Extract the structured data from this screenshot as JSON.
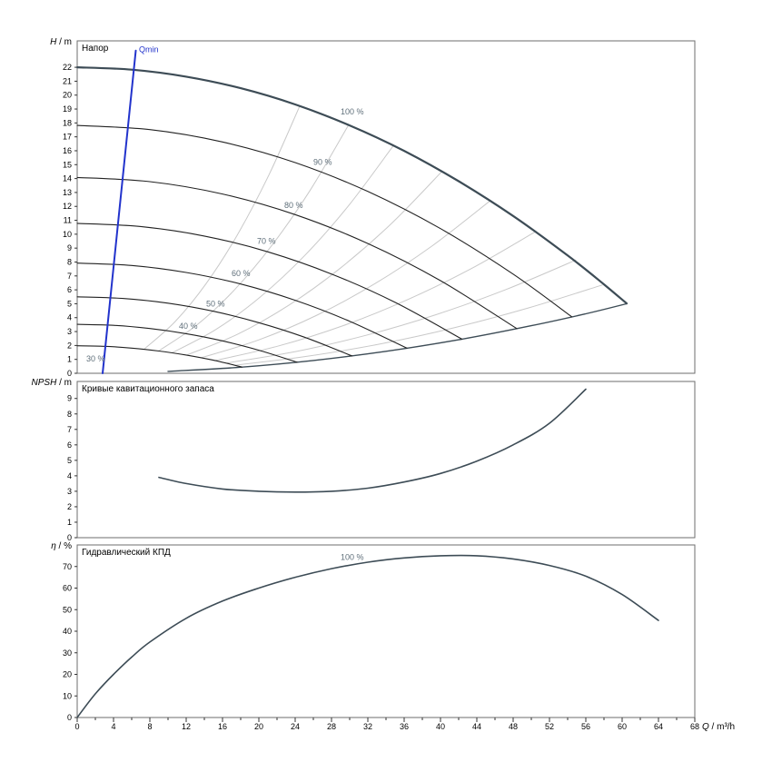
{
  "x_axis": {
    "label": "Q / m³/h",
    "min": 0,
    "max": 68,
    "minor_step": 2,
    "label_step": 4
  },
  "colors": {
    "envelope": "#3d4c56",
    "curve": "#222222",
    "iso": "#c9c9c9",
    "qmin": "#2233cc",
    "label": "#5f6f7a",
    "border": "#6e6e6e",
    "tick": "#333333",
    "text": "#000000"
  },
  "chart_data": [
    {
      "id": "head",
      "type": "line",
      "title": "Напор",
      "ylabel": "H / m",
      "ylim": [
        0,
        23.9
      ],
      "ytick_step": 1,
      "ytick_max": 22,
      "series": [
        {
          "name": "iso-eff-1",
          "role": "iso-efficiency-line",
          "color": "#c9c9c9",
          "width": 1,
          "points": [
            [
              7.4,
              1.75
            ],
            [
              10.8,
              3.73
            ],
            [
              14.2,
              6.45
            ],
            [
              17.6,
              9.91
            ],
            [
              21.1,
              14.25
            ],
            [
              24.5,
              19.21
            ]
          ]
        },
        {
          "name": "iso-eff-2",
          "role": "iso-efficiency-line",
          "color": "#c9c9c9",
          "width": 1,
          "points": [
            [
              9.0,
              1.62
            ],
            [
              13.2,
              3.49
            ],
            [
              17.3,
              5.99
            ],
            [
              21.5,
              9.25
            ],
            [
              25.7,
              13.21
            ],
            [
              29.9,
              17.88
            ]
          ]
        },
        {
          "name": "iso-eff-3",
          "role": "iso-efficiency-line",
          "color": "#c9c9c9",
          "width": 1,
          "points": [
            [
              10.5,
              1.49
            ],
            [
              15.3,
              3.16
            ],
            [
              20.2,
              5.51
            ],
            [
              25.1,
              8.5
            ],
            [
              29.9,
              12.07
            ],
            [
              34.8,
              16.35
            ]
          ]
        },
        {
          "name": "iso-eff-4",
          "role": "iso-efficiency-line",
          "color": "#c9c9c9",
          "width": 1,
          "points": [
            [
              12.1,
              1.32
            ],
            [
              17.7,
              2.82
            ],
            [
              23.3,
              4.89
            ],
            [
              28.9,
              7.52
            ],
            [
              34.6,
              10.77
            ],
            [
              40.2,
              14.54
            ]
          ]
        },
        {
          "name": "iso-eff-5",
          "role": "iso-efficiency-line",
          "color": "#c9c9c9",
          "width": 1,
          "points": [
            [
              13.6,
              1.11
            ],
            [
              20.0,
              2.4
            ],
            [
              26.4,
              4.18
            ],
            [
              32.8,
              6.45
            ],
            [
              39.1,
              9.17
            ],
            [
              45.5,
              12.42
            ]
          ]
        },
        {
          "name": "iso-eff-6",
          "role": "iso-efficiency-line",
          "color": "#c9c9c9",
          "width": 1,
          "points": [
            [
              15.1,
              0.91
            ],
            [
              22.2,
              1.97
            ],
            [
              29.3,
              3.43
            ],
            [
              36.4,
              5.3
            ],
            [
              43.4,
              7.53
            ],
            [
              50.5,
              10.2
            ]
          ]
        },
        {
          "name": "iso-eff-7",
          "role": "iso-efficiency-line",
          "color": "#c9c9c9",
          "width": 1,
          "points": [
            [
              16.5,
              0.74
            ],
            [
              24.1,
              1.57
            ],
            [
              31.8,
              2.73
            ],
            [
              39.5,
              4.21
            ],
            [
              47.2,
              6.02
            ],
            [
              54.9,
              8.14
            ]
          ]
        },
        {
          "name": "iso-eff-8",
          "role": "iso-efficiency-line",
          "color": "#c9c9c9",
          "width": 1,
          "points": [
            [
              17.4,
              0.58
            ],
            [
              25.5,
              1.24
            ],
            [
              33.6,
              2.14
            ],
            [
              41.6,
              3.29
            ],
            [
              49.7,
              4.7
            ],
            [
              57.8,
              6.35
            ]
          ]
        },
        {
          "name": "max-flow-limit",
          "role": "max-flow-limit-curve",
          "color": "#3d4c56",
          "width": 1.4,
          "points": [
            [
              10,
              0.14
            ],
            [
              18,
              0.44
            ],
            [
              26,
              0.92
            ],
            [
              34,
              1.58
            ],
            [
              42,
              2.41
            ],
            [
              50,
              3.42
            ],
            [
              56,
              4.28
            ],
            [
              60.5,
              5.0
            ]
          ]
        },
        {
          "name": "30 %",
          "role": "speed-curve-30",
          "color": "#222222",
          "width": 1.1,
          "points": [
            [
              0,
              1.98
            ],
            [
              3,
              1.94
            ],
            [
              6,
              1.81
            ],
            [
              9,
              1.6
            ],
            [
              12,
              1.31
            ],
            [
              15,
              0.94
            ],
            [
              18.15,
              0.45
            ]
          ]
        },
        {
          "name": "40 %",
          "role": "speed-curve-40",
          "color": "#222222",
          "width": 1.1,
          "points": [
            [
              0,
              3.52
            ],
            [
              4,
              3.45
            ],
            [
              8,
              3.22
            ],
            [
              12,
              2.85
            ],
            [
              16,
              2.33
            ],
            [
              20,
              1.66
            ],
            [
              24.2,
              0.8
            ]
          ]
        },
        {
          "name": "50 %",
          "role": "speed-curve-50",
          "color": "#222222",
          "width": 1.1,
          "points": [
            [
              0,
              5.5
            ],
            [
              5,
              5.38
            ],
            [
              10,
              5.04
            ],
            [
              15,
              4.46
            ],
            [
              20,
              3.64
            ],
            [
              25,
              2.6
            ],
            [
              30.25,
              1.25
            ]
          ]
        },
        {
          "name": "60 %",
          "role": "speed-curve-60",
          "color": "#222222",
          "width": 1.1,
          "points": [
            [
              0,
              7.92
            ],
            [
              6,
              7.75
            ],
            [
              12,
              7.25
            ],
            [
              18,
              6.42
            ],
            [
              24,
              5.25
            ],
            [
              30,
              3.74
            ],
            [
              36.3,
              1.81
            ]
          ]
        },
        {
          "name": "70 %",
          "role": "speed-curve-70",
          "color": "#222222",
          "width": 1.1,
          "points": [
            [
              0,
              10.78
            ],
            [
              7,
              10.55
            ],
            [
              14,
              9.87
            ],
            [
              21,
              8.73
            ],
            [
              28,
              7.14
            ],
            [
              35,
              5.1
            ],
            [
              42.35,
              2.46
            ]
          ]
        },
        {
          "name": "80 %",
          "role": "speed-curve-80",
          "color": "#222222",
          "width": 1.1,
          "points": [
            [
              0,
              14.08
            ],
            [
              8,
              13.78
            ],
            [
              16,
              12.89
            ],
            [
              24,
              11.41
            ],
            [
              32,
              9.33
            ],
            [
              40,
              6.66
            ],
            [
              48.4,
              3.21
            ]
          ]
        },
        {
          "name": "90 %",
          "role": "speed-curve-90",
          "color": "#222222",
          "width": 1.1,
          "points": [
            [
              0,
              17.82
            ],
            [
              8,
              17.52
            ],
            [
              16,
              16.63
            ],
            [
              24,
              15.15
            ],
            [
              32,
              13.07
            ],
            [
              40,
              10.4
            ],
            [
              48,
              7.13
            ],
            [
              54.45,
              4.06
            ]
          ]
        },
        {
          "name": "100 %",
          "role": "speed-curve-100",
          "color": "#3d4c56",
          "width": 2.2,
          "points": [
            [
              0,
              22
            ],
            [
              6,
              21.83
            ],
            [
              12,
              21.33
            ],
            [
              18,
              20.5
            ],
            [
              24,
              19.33
            ],
            [
              30,
              17.82
            ],
            [
              36,
              15.99
            ],
            [
              42,
              13.81
            ],
            [
              48,
              11.31
            ],
            [
              54,
              8.47
            ],
            [
              58,
              6.39
            ],
            [
              60.5,
              5.02
            ]
          ]
        },
        {
          "name": "Qmin",
          "role": "qmin-line",
          "color": "#2233cc",
          "width": 2,
          "points": [
            [
              2.8,
              0
            ],
            [
              6.45,
              23.2
            ]
          ]
        }
      ],
      "labels": [
        {
          "text": "Qmin",
          "x": 6.8,
          "y": 23.1,
          "color": "#2233cc"
        },
        {
          "text": "100 %",
          "x": 29,
          "y": 18.6
        },
        {
          "text": "90 %",
          "x": 26,
          "y": 15.0
        },
        {
          "text": "80 %",
          "x": 22.8,
          "y": 11.9
        },
        {
          "text": "70 %",
          "x": 19.8,
          "y": 9.3
        },
        {
          "text": "60 %",
          "x": 17,
          "y": 7.0
        },
        {
          "text": "50 %",
          "x": 14.2,
          "y": 4.8
        },
        {
          "text": "40 %",
          "x": 11.2,
          "y": 3.2
        },
        {
          "text": "30 %",
          "x": 1.0,
          "y": 0.85
        }
      ]
    },
    {
      "id": "npsh",
      "type": "line",
      "title": "Кривые кавитационного запаса",
      "ylabel": "NPSH / m",
      "ylim": [
        0,
        10.1
      ],
      "ytick_step": 1,
      "ytick_max": 9,
      "series": [
        {
          "name": "NPSH",
          "role": "npsh-curve",
          "color": "#3d4c56",
          "width": 1.6,
          "points": [
            [
              9,
              3.9
            ],
            [
              12,
              3.5
            ],
            [
              16,
              3.15
            ],
            [
              20,
              3.0
            ],
            [
              24,
              2.95
            ],
            [
              28,
              3.0
            ],
            [
              32,
              3.2
            ],
            [
              36,
              3.6
            ],
            [
              40,
              4.15
            ],
            [
              44,
              4.95
            ],
            [
              48,
              6.0
            ],
            [
              52,
              7.4
            ],
            [
              56,
              9.6
            ]
          ]
        }
      ],
      "labels": []
    },
    {
      "id": "eta",
      "type": "line",
      "title": "Гидравлический КПД",
      "ylabel": "η / %",
      "ylim": [
        0,
        80
      ],
      "ytick_step": 10,
      "ytick_max": 70,
      "series": [
        {
          "name": "100 %",
          "role": "efficiency-curve",
          "color": "#3d4c56",
          "width": 1.6,
          "points": [
            [
              0,
              0
            ],
            [
              2,
              11
            ],
            [
              4,
              20
            ],
            [
              6,
              28
            ],
            [
              8,
              35
            ],
            [
              12,
              46
            ],
            [
              16,
              54
            ],
            [
              20,
              60
            ],
            [
              24,
              65
            ],
            [
              28,
              69
            ],
            [
              32,
              72
            ],
            [
              36,
              74
            ],
            [
              40,
              75
            ],
            [
              44,
              75
            ],
            [
              48,
              73.5
            ],
            [
              52,
              70.5
            ],
            [
              56,
              65.5
            ],
            [
              60,
              57
            ],
            [
              64,
              45
            ]
          ]
        }
      ],
      "labels": [
        {
          "text": "100 %",
          "x": 29,
          "y": 73
        }
      ]
    }
  ]
}
